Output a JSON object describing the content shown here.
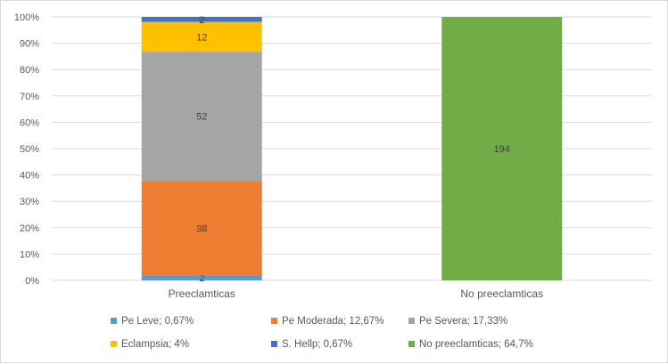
{
  "chart_data": {
    "type": "bar",
    "stacked": "percent",
    "categories": [
      "Preeclamticas",
      "No preeclamticas"
    ],
    "yticks": [
      "0%",
      "10%",
      "20%",
      "30%",
      "40%",
      "50%",
      "60%",
      "70%",
      "80%",
      "90%",
      "100%"
    ],
    "ylim": [
      0,
      100
    ],
    "grid": true,
    "legend_position": "bottom",
    "series": [
      {
        "key": "pe_leve",
        "legend": "Pe Leve; 0,67%",
        "color": "#5b9bd5",
        "values": [
          2,
          0
        ],
        "labels": [
          "2",
          ""
        ]
      },
      {
        "key": "pe_moderada",
        "legend": "Pe Moderada; 12,67%",
        "color": "#ed7d31",
        "values": [
          38,
          0
        ],
        "labels": [
          "38",
          ""
        ]
      },
      {
        "key": "pe_severa",
        "legend": "Pe Severa; 17,33%",
        "color": "#a5a5a5",
        "values": [
          52,
          0
        ],
        "labels": [
          "52",
          ""
        ]
      },
      {
        "key": "eclampsia",
        "legend": "Eclampsia; 4%",
        "color": "#ffc000",
        "values": [
          12,
          0
        ],
        "labels": [
          "12",
          ""
        ]
      },
      {
        "key": "s_hellp",
        "legend": "S. Hellp; 0,67%",
        "color": "#4472c4",
        "values": [
          2,
          0
        ],
        "labels": [
          "2",
          ""
        ]
      },
      {
        "key": "no_preeclamticas",
        "legend": "No preeclamticas; 64,7%",
        "color": "#70ad47",
        "values": [
          0,
          194
        ],
        "labels": [
          "",
          "194"
        ]
      }
    ]
  }
}
